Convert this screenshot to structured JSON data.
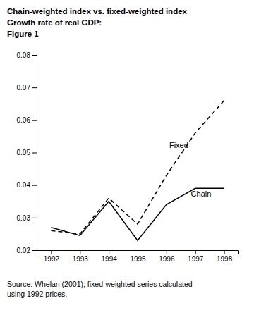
{
  "chart_data": {
    "type": "line",
    "title": [
      "Chain-weighted index vs. fixed-weighted index",
      "Growth rate of real GDP:",
      "Figure 1"
    ],
    "x": [
      1992,
      1993,
      1994,
      1995,
      1996,
      1997,
      1998
    ],
    "series": [
      {
        "values": [
          0.027,
          0.0245,
          0.035,
          0.023,
          0.034,
          0.039,
          0.039
        ],
        "color": "#000000",
        "line_style": "solid"
      },
      {
        "values": [
          0.026,
          0.025,
          0.036,
          0.028,
          0.043,
          0.056,
          0.066
        ],
        "color": "#000000",
        "line_style": "dashed"
      }
    ],
    "xlim": [
      1991.5,
      1998.5
    ],
    "xticks": [
      1992,
      1993,
      1994,
      1995,
      1996,
      1997,
      1998
    ],
    "ylim": [
      0.02,
      0.08
    ],
    "yticks": [
      0.02,
      0.03,
      0.04,
      0.05,
      0.06,
      0.07,
      0.08
    ],
    "grid": false,
    "annotations": [
      {
        "text": "Fixed",
        "x": 1996.1,
        "y": 0.0515
      },
      {
        "text": "Chain",
        "x": 1996.85,
        "y": 0.0365
      },
      {
        "text": "Source: Whelan (2001); fixed-weighted series calculated\nusing 1992 prices."
      }
    ]
  }
}
